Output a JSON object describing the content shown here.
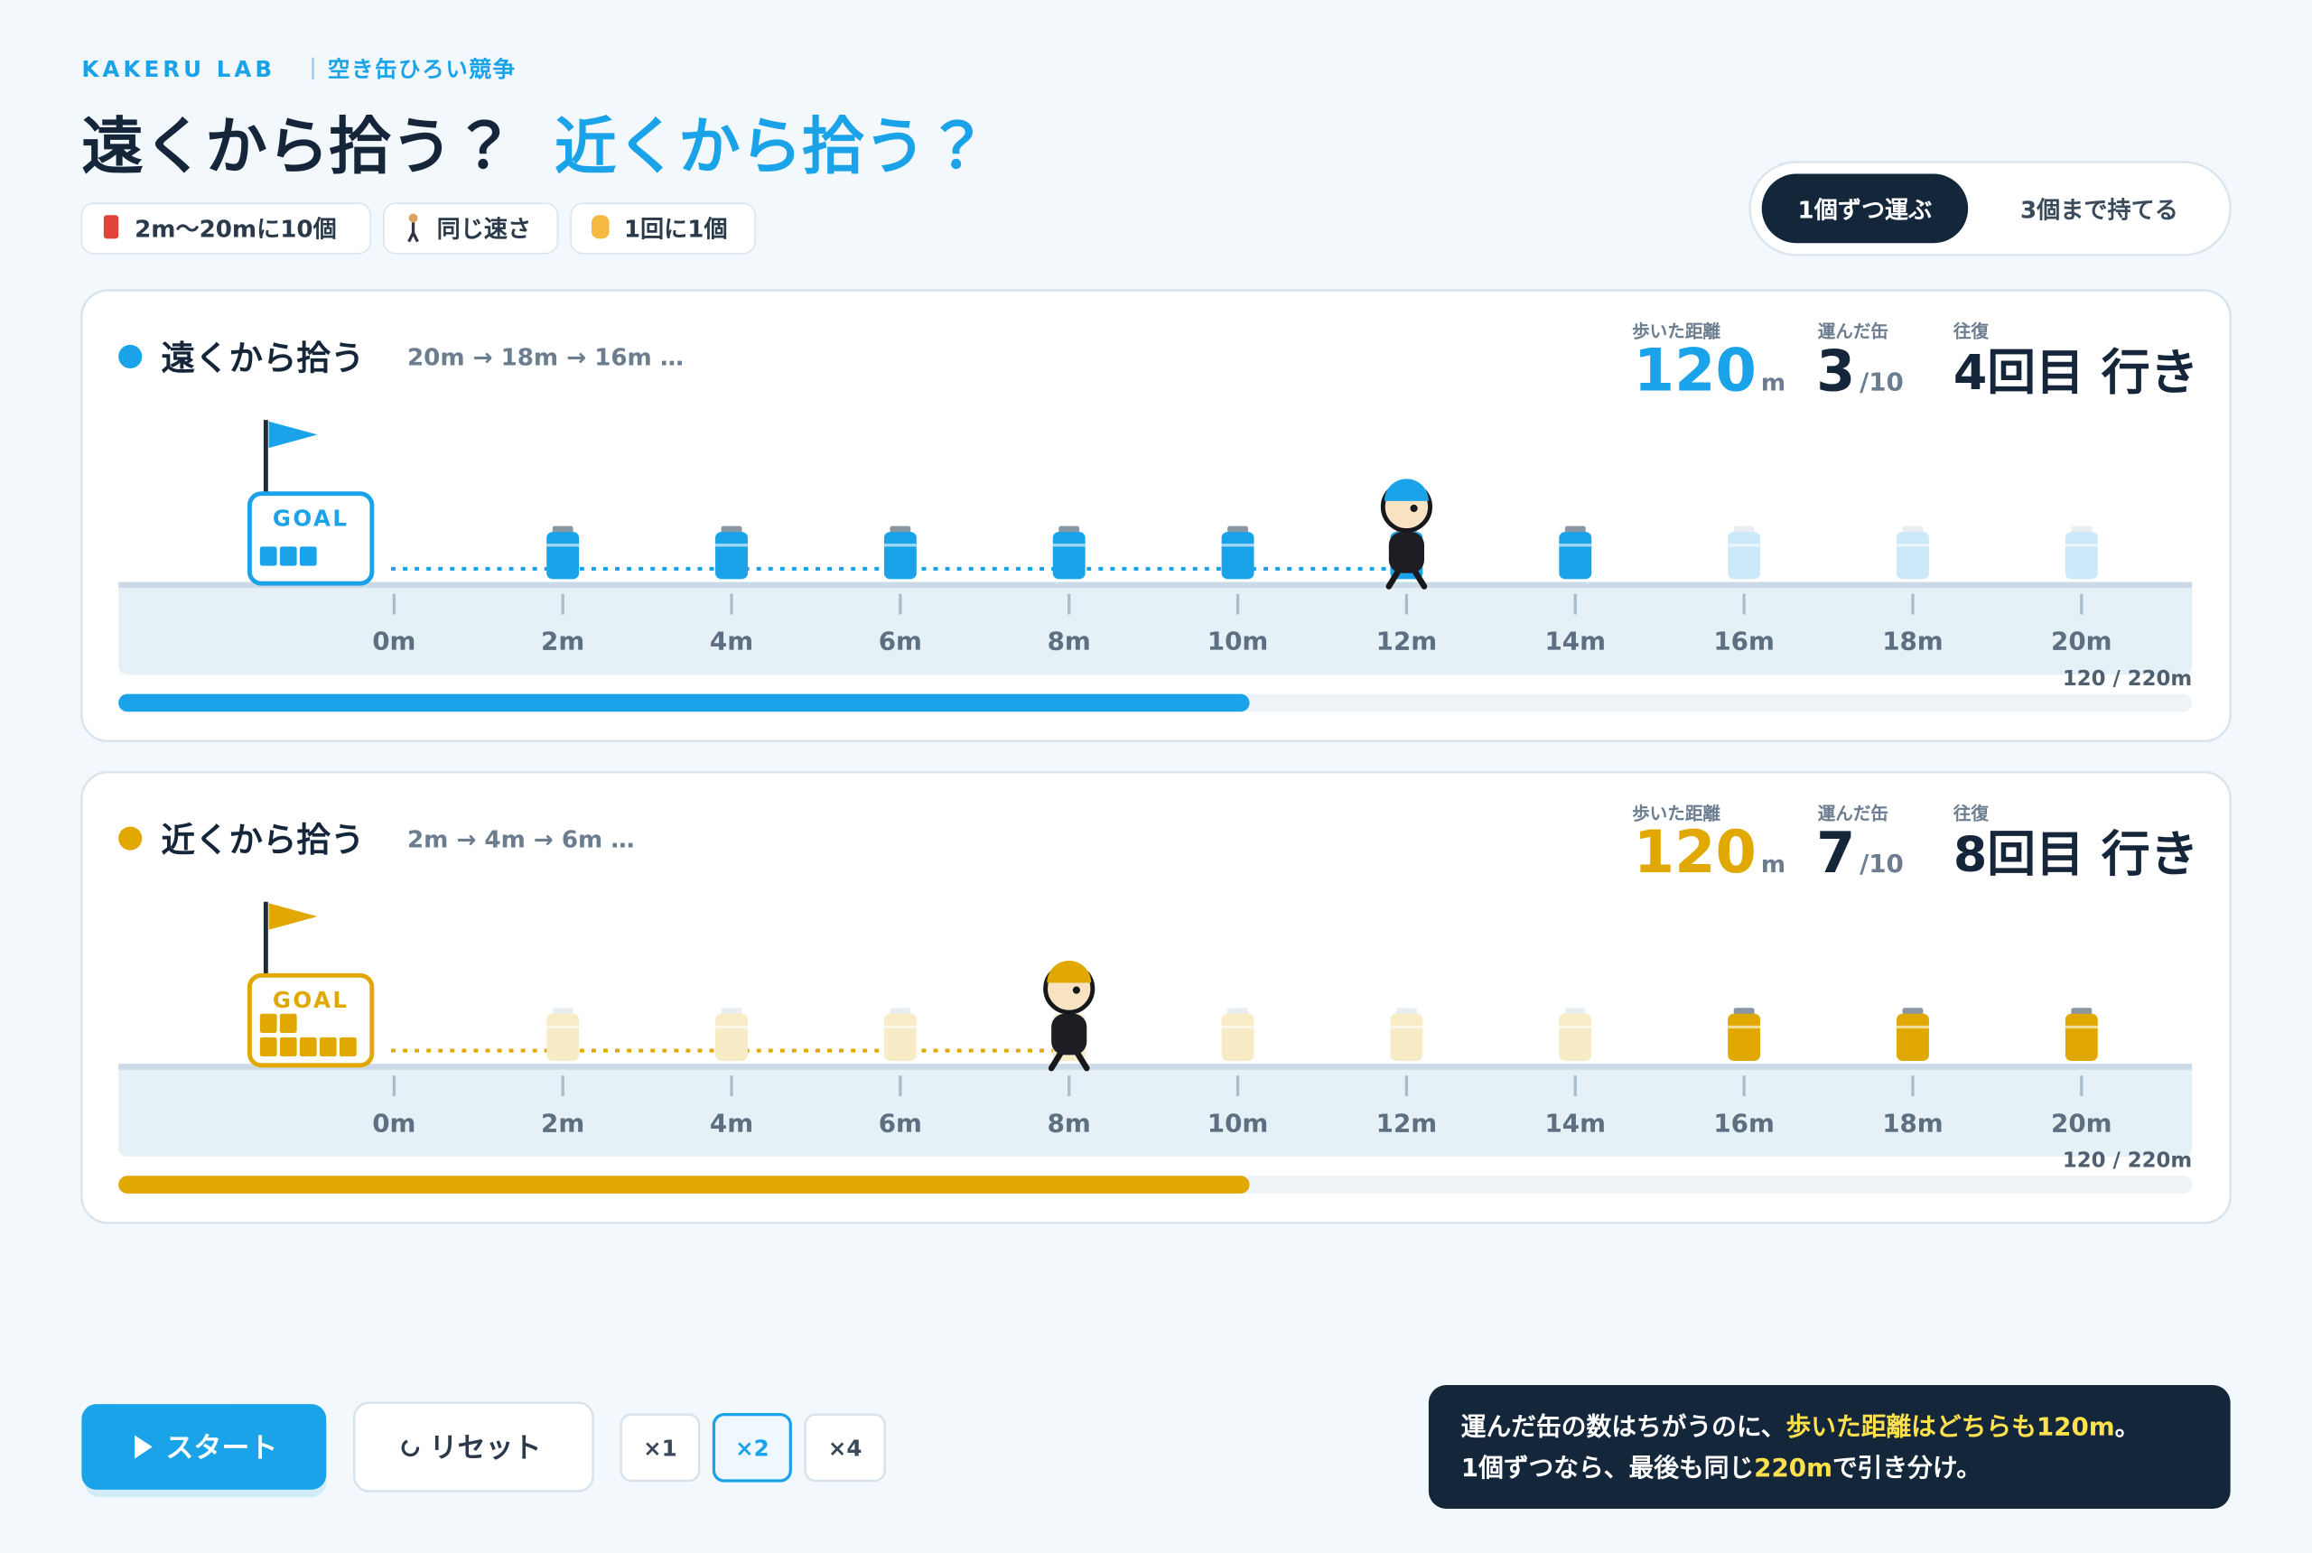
{
  "header": {
    "brand": "KAKERU LAB",
    "subtitle": "空き缶ひろい競争",
    "title_a": "遠くから拾う？",
    "title_b": "近くから拾う？"
  },
  "chips": [
    "2m〜20mに10個",
    "同じ速さ",
    "1回に1個"
  ],
  "mode_toggle": {
    "options": [
      "1個ずつ運ぶ",
      "3個まで持てる"
    ],
    "active": 0
  },
  "lanes": [
    {
      "name": "遠くから拾う",
      "order": "20m → 18m → 16m …",
      "color": "#1aa3e8",
      "faded_color": "#cbe9f8",
      "stats": {
        "distance_label": "歩いた距離",
        "distance": 120,
        "distance_unit": "m",
        "carried_label": "運んだ缶",
        "carried": 3,
        "carried_total": "/10",
        "trip_label": "往復",
        "trip": "4回目 行き"
      },
      "goal_label": "GOAL",
      "ticks": [
        {
          "value": 0,
          "label": "0m"
        },
        {
          "value": 2,
          "label": "2m"
        },
        {
          "value": 4,
          "label": "4m"
        },
        {
          "value": 6,
          "label": "6m"
        },
        {
          "value": 8,
          "label": "8m"
        },
        {
          "value": 10,
          "label": "10m"
        },
        {
          "value": 12,
          "label": "12m"
        },
        {
          "value": 14,
          "label": "14m"
        },
        {
          "value": 16,
          "label": "16m"
        },
        {
          "value": 18,
          "label": "18m"
        },
        {
          "value": 20,
          "label": "20m"
        }
      ],
      "cans": [
        {
          "at": 2,
          "taken": false
        },
        {
          "at": 4,
          "taken": false
        },
        {
          "at": 6,
          "taken": false
        },
        {
          "at": 8,
          "taken": false
        },
        {
          "at": 10,
          "taken": false
        },
        {
          "at": 12,
          "taken": false
        },
        {
          "at": 14,
          "taken": false
        },
        {
          "at": 16,
          "taken": true
        },
        {
          "at": 18,
          "taken": true
        },
        {
          "at": 20,
          "taken": true
        }
      ],
      "walker": 12,
      "progress": {
        "value": 120,
        "max": 220,
        "label": "120 / 220m"
      }
    },
    {
      "name": "近くから拾う",
      "order": "2m → 4m → 6m …",
      "color": "#e0a800",
      "faded_color": "#f8ecc6",
      "stats": {
        "distance_label": "歩いた距離",
        "distance": 120,
        "distance_unit": "m",
        "carried_label": "運んだ缶",
        "carried": 7,
        "carried_total": "/10",
        "trip_label": "往復",
        "trip": "8回目 行き"
      },
      "goal_label": "GOAL",
      "ticks": [
        {
          "value": 0,
          "label": "0m"
        },
        {
          "value": 2,
          "label": "2m"
        },
        {
          "value": 4,
          "label": "4m"
        },
        {
          "value": 6,
          "label": "6m"
        },
        {
          "value": 8,
          "label": "8m"
        },
        {
          "value": 10,
          "label": "10m"
        },
        {
          "value": 12,
          "label": "12m"
        },
        {
          "value": 14,
          "label": "14m"
        },
        {
          "value": 16,
          "label": "16m"
        },
        {
          "value": 18,
          "label": "18m"
        },
        {
          "value": 20,
          "label": "20m"
        }
      ],
      "cans": [
        {
          "at": 2,
          "taken": true
        },
        {
          "at": 4,
          "taken": true
        },
        {
          "at": 6,
          "taken": true
        },
        {
          "at": 8,
          "taken": true
        },
        {
          "at": 10,
          "taken": true
        },
        {
          "at": 12,
          "taken": true
        },
        {
          "at": 14,
          "taken": true
        },
        {
          "at": 16,
          "taken": false
        },
        {
          "at": 18,
          "taken": false
        },
        {
          "at": 20,
          "taken": false
        }
      ],
      "walker": 8,
      "progress": {
        "value": 120,
        "max": 220,
        "label": "120 / 220m"
      }
    }
  ],
  "controls": {
    "start": "スタート",
    "reset": "リセット",
    "speeds": [
      "×1",
      "×2",
      "×4"
    ],
    "active_speed": 1
  },
  "note": {
    "lines": [
      [
        {
          "text": "運んだ缶の数はちがうのに、",
          "highlight": false
        },
        {
          "text": "歩いた距離はどちらも120m",
          "highlight": true
        },
        {
          "text": "。",
          "highlight": false
        }
      ],
      [
        {
          "text": "1個ずつなら、最後も同じ",
          "highlight": false
        },
        {
          "text": "220m",
          "highlight": true
        },
        {
          "text": "で引き分け。",
          "highlight": false
        }
      ]
    ]
  }
}
